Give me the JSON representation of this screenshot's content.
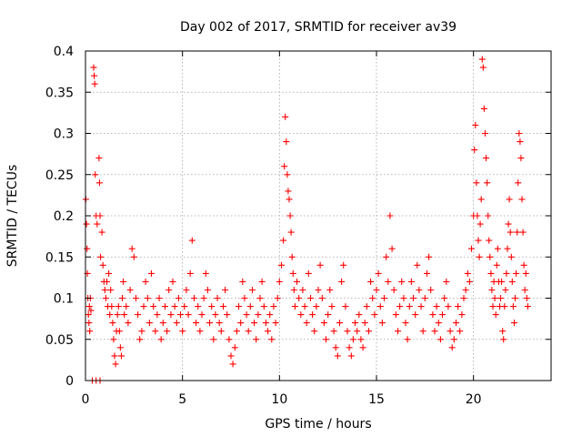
{
  "chart_data": {
    "type": "scatter",
    "title": "Day 002 of 2017, SRMTID for receiver av39",
    "xlabel": "GPS time / hours",
    "ylabel": "SRMTID / TECUs",
    "xlim": [
      0,
      24
    ],
    "ylim": [
      0,
      0.4
    ],
    "x_ticks": [
      0,
      5,
      10,
      15,
      20
    ],
    "y_ticks": [
      0,
      0.05,
      0.1,
      0.15,
      0.2,
      0.25,
      0.3,
      0.35,
      0.4
    ],
    "x_tick_labels": [
      "0",
      "5",
      "10",
      "15",
      "20"
    ],
    "y_tick_labels": [
      "0",
      "0.05",
      "0.1",
      "0.15",
      "0.2",
      "0.25",
      "0.3",
      "0.35",
      "0.4"
    ],
    "grid": true,
    "marker": "+",
    "marker_color": "#ff0000",
    "x_data_range": [
      0.0,
      22.8
    ],
    "series": [
      {
        "name": "SRMTID",
        "points": [
          [
            0.02,
            0.22
          ],
          [
            0.05,
            0.19
          ],
          [
            0.08,
            0.16
          ],
          [
            0.1,
            0.13
          ],
          [
            0.12,
            0.1
          ],
          [
            0.15,
            0.08
          ],
          [
            0.18,
            0.07
          ],
          [
            0.2,
            0.09
          ],
          [
            0.22,
            0.06
          ],
          [
            0.25,
            0.1
          ],
          [
            0.28,
            0.085
          ],
          [
            0.35,
            0.0
          ],
          [
            0.55,
            0.0
          ],
          [
            0.75,
            0.0
          ],
          [
            0.42,
            0.38
          ],
          [
            0.45,
            0.37
          ],
          [
            0.48,
            0.36
          ],
          [
            0.5,
            0.25
          ],
          [
            0.55,
            0.2
          ],
          [
            0.6,
            0.19
          ],
          [
            0.7,
            0.27
          ],
          [
            0.72,
            0.24
          ],
          [
            0.75,
            0.2
          ],
          [
            0.78,
            0.15
          ],
          [
            0.85,
            0.18
          ],
          [
            0.9,
            0.14
          ],
          [
            0.95,
            0.12
          ],
          [
            1.0,
            0.11
          ],
          [
            1.05,
            0.1
          ],
          [
            1.1,
            0.12
          ],
          [
            1.15,
            0.09
          ],
          [
            1.2,
            0.13
          ],
          [
            1.25,
            0.08
          ],
          [
            1.3,
            0.11
          ],
          [
            1.35,
            0.09
          ],
          [
            1.4,
            0.07
          ],
          [
            1.45,
            0.05
          ],
          [
            1.5,
            0.03
          ],
          [
            1.55,
            0.02
          ],
          [
            1.6,
            0.06
          ],
          [
            1.65,
            0.08
          ],
          [
            1.7,
            0.09
          ],
          [
            1.75,
            0.06
          ],
          [
            1.8,
            0.04
          ],
          [
            1.85,
            0.03
          ],
          [
            1.9,
            0.1
          ],
          [
            1.95,
            0.12
          ],
          [
            2.0,
            0.08
          ],
          [
            2.1,
            0.09
          ],
          [
            2.2,
            0.07
          ],
          [
            2.3,
            0.11
          ],
          [
            2.4,
            0.16
          ],
          [
            2.5,
            0.15
          ],
          [
            2.6,
            0.1
          ],
          [
            2.7,
            0.08
          ],
          [
            2.8,
            0.05
          ],
          [
            2.9,
            0.06
          ],
          [
            3.0,
            0.09
          ],
          [
            3.1,
            0.12
          ],
          [
            3.2,
            0.1
          ],
          [
            3.3,
            0.07
          ],
          [
            3.4,
            0.13
          ],
          [
            3.5,
            0.09
          ],
          [
            3.6,
            0.06
          ],
          [
            3.7,
            0.08
          ],
          [
            3.8,
            0.1
          ],
          [
            3.9,
            0.05
          ],
          [
            4.0,
            0.07
          ],
          [
            4.1,
            0.09
          ],
          [
            4.2,
            0.06
          ],
          [
            4.3,
            0.11
          ],
          [
            4.4,
            0.08
          ],
          [
            4.5,
            0.12
          ],
          [
            4.6,
            0.09
          ],
          [
            4.7,
            0.07
          ],
          [
            4.8,
            0.1
          ],
          [
            4.9,
            0.08
          ],
          [
            5.0,
            0.06
          ],
          [
            5.1,
            0.09
          ],
          [
            5.2,
            0.11
          ],
          [
            5.3,
            0.08
          ],
          [
            5.4,
            0.13
          ],
          [
            5.5,
            0.17
          ],
          [
            5.6,
            0.1
          ],
          [
            5.7,
            0.07
          ],
          [
            5.8,
            0.09
          ],
          [
            5.9,
            0.06
          ],
          [
            6.0,
            0.08
          ],
          [
            6.1,
            0.1
          ],
          [
            6.2,
            0.13
          ],
          [
            6.3,
            0.11
          ],
          [
            6.4,
            0.07
          ],
          [
            6.5,
            0.09
          ],
          [
            6.6,
            0.05
          ],
          [
            6.7,
            0.08
          ],
          [
            6.8,
            0.1
          ],
          [
            6.9,
            0.07
          ],
          [
            7.0,
            0.06
          ],
          [
            7.1,
            0.09
          ],
          [
            7.2,
            0.11
          ],
          [
            7.3,
            0.08
          ],
          [
            7.4,
            0.05
          ],
          [
            7.5,
            0.03
          ],
          [
            7.6,
            0.02
          ],
          [
            7.7,
            0.04
          ],
          [
            7.8,
            0.06
          ],
          [
            7.9,
            0.09
          ],
          [
            8.0,
            0.07
          ],
          [
            8.1,
            0.12
          ],
          [
            8.2,
            0.1
          ],
          [
            8.3,
            0.08
          ],
          [
            8.4,
            0.06
          ],
          [
            8.5,
            0.09
          ],
          [
            8.6,
            0.11
          ],
          [
            8.7,
            0.07
          ],
          [
            8.8,
            0.05
          ],
          [
            8.9,
            0.08
          ],
          [
            9.0,
            0.1
          ],
          [
            9.1,
            0.12
          ],
          [
            9.2,
            0.09
          ],
          [
            9.3,
            0.07
          ],
          [
            9.4,
            0.06
          ],
          [
            9.5,
            0.08
          ],
          [
            9.6,
            0.05
          ],
          [
            9.7,
            0.09
          ],
          [
            9.8,
            0.07
          ],
          [
            9.9,
            0.1
          ],
          [
            10.0,
            0.12
          ],
          [
            10.1,
            0.14
          ],
          [
            10.2,
            0.17
          ],
          [
            10.25,
            0.26
          ],
          [
            10.3,
            0.32
          ],
          [
            10.35,
            0.29
          ],
          [
            10.4,
            0.25
          ],
          [
            10.45,
            0.23
          ],
          [
            10.5,
            0.22
          ],
          [
            10.55,
            0.2
          ],
          [
            10.6,
            0.18
          ],
          [
            10.65,
            0.15
          ],
          [
            10.7,
            0.13
          ],
          [
            10.75,
            0.11
          ],
          [
            10.8,
            0.09
          ],
          [
            10.9,
            0.12
          ],
          [
            11.0,
            0.1
          ],
          [
            11.1,
            0.08
          ],
          [
            11.2,
            0.11
          ],
          [
            11.3,
            0.09
          ],
          [
            11.4,
            0.07
          ],
          [
            11.5,
            0.13
          ],
          [
            11.6,
            0.1
          ],
          [
            11.7,
            0.08
          ],
          [
            11.8,
            0.06
          ],
          [
            11.9,
            0.09
          ],
          [
            12.0,
            0.11
          ],
          [
            12.1,
            0.14
          ],
          [
            12.2,
            0.1
          ],
          [
            12.3,
            0.07
          ],
          [
            12.4,
            0.05
          ],
          [
            12.5,
            0.08
          ],
          [
            12.6,
            0.11
          ],
          [
            12.7,
            0.09
          ],
          [
            12.8,
            0.06
          ],
          [
            12.9,
            0.04
          ],
          [
            13.0,
            0.03
          ],
          [
            13.1,
            0.07
          ],
          [
            13.2,
            0.12
          ],
          [
            13.3,
            0.14
          ],
          [
            13.4,
            0.09
          ],
          [
            13.5,
            0.06
          ],
          [
            13.6,
            0.04
          ],
          [
            13.7,
            0.03
          ],
          [
            13.8,
            0.05
          ],
          [
            13.9,
            0.07
          ],
          [
            14.0,
            0.06
          ],
          [
            14.1,
            0.08
          ],
          [
            14.2,
            0.05
          ],
          [
            14.3,
            0.04
          ],
          [
            14.4,
            0.07
          ],
          [
            14.5,
            0.09
          ],
          [
            14.6,
            0.06
          ],
          [
            14.7,
            0.12
          ],
          [
            14.8,
            0.1
          ],
          [
            14.9,
            0.08
          ],
          [
            15.0,
            0.11
          ],
          [
            15.1,
            0.13
          ],
          [
            15.2,
            0.09
          ],
          [
            15.3,
            0.07
          ],
          [
            15.4,
            0.1
          ],
          [
            15.5,
            0.15
          ],
          [
            15.6,
            0.12
          ],
          [
            15.7,
            0.2
          ],
          [
            15.8,
            0.16
          ],
          [
            15.9,
            0.11
          ],
          [
            16.0,
            0.08
          ],
          [
            16.1,
            0.06
          ],
          [
            16.2,
            0.09
          ],
          [
            16.3,
            0.12
          ],
          [
            16.4,
            0.1
          ],
          [
            16.5,
            0.07
          ],
          [
            16.6,
            0.05
          ],
          [
            16.7,
            0.09
          ],
          [
            16.8,
            0.12
          ],
          [
            16.9,
            0.1
          ],
          [
            17.0,
            0.08
          ],
          [
            17.1,
            0.14
          ],
          [
            17.2,
            0.11
          ],
          [
            17.3,
            0.09
          ],
          [
            17.4,
            0.06
          ],
          [
            17.5,
            0.1
          ],
          [
            17.6,
            0.13
          ],
          [
            17.7,
            0.15
          ],
          [
            17.8,
            0.11
          ],
          [
            17.9,
            0.08
          ],
          [
            18.0,
            0.06
          ],
          [
            18.1,
            0.09
          ],
          [
            18.2,
            0.07
          ],
          [
            18.3,
            0.05
          ],
          [
            18.4,
            0.08
          ],
          [
            18.5,
            0.1
          ],
          [
            18.6,
            0.12
          ],
          [
            18.7,
            0.09
          ],
          [
            18.8,
            0.06
          ],
          [
            18.9,
            0.04
          ],
          [
            19.0,
            0.05
          ],
          [
            19.1,
            0.07
          ],
          [
            19.2,
            0.09
          ],
          [
            19.3,
            0.06
          ],
          [
            19.4,
            0.08
          ],
          [
            19.5,
            0.1
          ],
          [
            19.6,
            0.11
          ],
          [
            19.7,
            0.13
          ],
          [
            19.8,
            0.12
          ],
          [
            19.9,
            0.16
          ],
          [
            20.0,
            0.2
          ],
          [
            20.05,
            0.28
          ],
          [
            20.1,
            0.31
          ],
          [
            20.15,
            0.24
          ],
          [
            20.2,
            0.2
          ],
          [
            20.25,
            0.17
          ],
          [
            20.3,
            0.15
          ],
          [
            20.35,
            0.19
          ],
          [
            20.4,
            0.22
          ],
          [
            20.45,
            0.39
          ],
          [
            20.5,
            0.38
          ],
          [
            20.55,
            0.33
          ],
          [
            20.6,
            0.3
          ],
          [
            20.65,
            0.27
          ],
          [
            20.7,
            0.24
          ],
          [
            20.75,
            0.2
          ],
          [
            20.8,
            0.17
          ],
          [
            20.85,
            0.15
          ],
          [
            20.9,
            0.13
          ],
          [
            20.95,
            0.11
          ],
          [
            21.0,
            0.09
          ],
          [
            21.05,
            0.12
          ],
          [
            21.1,
            0.1
          ],
          [
            21.15,
            0.08
          ],
          [
            21.2,
            0.14
          ],
          [
            21.25,
            0.16
          ],
          [
            21.3,
            0.12
          ],
          [
            21.35,
            0.09
          ],
          [
            21.4,
            0.1
          ],
          [
            21.45,
            0.12
          ],
          [
            21.5,
            0.06
          ],
          [
            21.55,
            0.05
          ],
          [
            21.6,
            0.09
          ],
          [
            21.65,
            0.11
          ],
          [
            21.7,
            0.13
          ],
          [
            21.75,
            0.16
          ],
          [
            21.8,
            0.19
          ],
          [
            21.85,
            0.22
          ],
          [
            21.9,
            0.18
          ],
          [
            21.95,
            0.15
          ],
          [
            22.0,
            0.12
          ],
          [
            22.05,
            0.09
          ],
          [
            22.1,
            0.07
          ],
          [
            22.15,
            0.1
          ],
          [
            22.2,
            0.13
          ],
          [
            22.25,
            0.18
          ],
          [
            22.3,
            0.24
          ],
          [
            22.35,
            0.3
          ],
          [
            22.4,
            0.29
          ],
          [
            22.45,
            0.27
          ],
          [
            22.5,
            0.22
          ],
          [
            22.55,
            0.18
          ],
          [
            22.6,
            0.14
          ],
          [
            22.65,
            0.11
          ],
          [
            22.7,
            0.13
          ],
          [
            22.75,
            0.1
          ],
          [
            22.8,
            0.09
          ]
        ]
      }
    ]
  }
}
